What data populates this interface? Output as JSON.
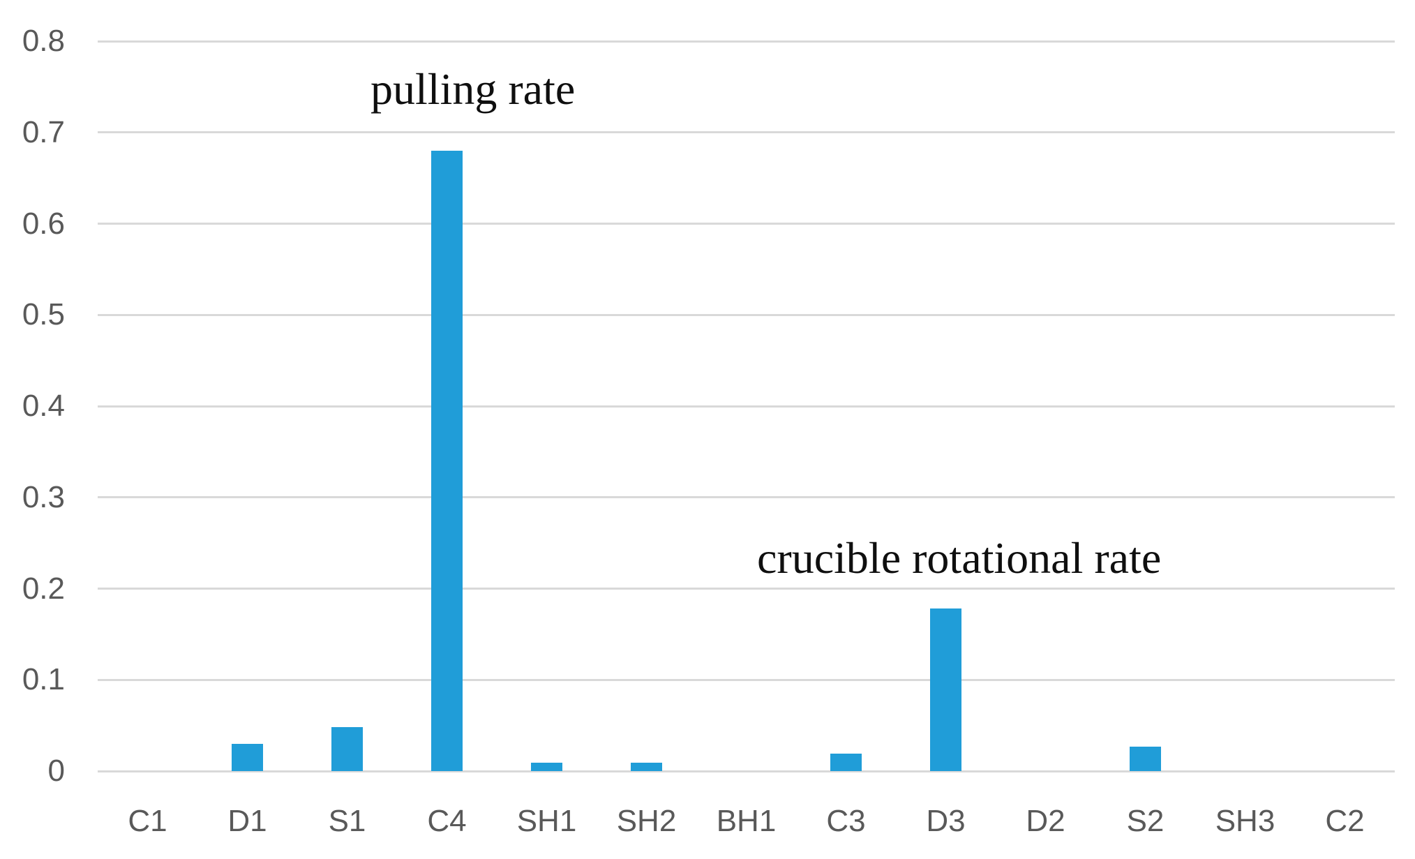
{
  "chart_data": {
    "type": "bar",
    "categories": [
      "C1",
      "D1",
      "S1",
      "C4",
      "SH1",
      "SH2",
      "BH1",
      "C3",
      "D3",
      "D2",
      "S2",
      "SH3",
      "C2"
    ],
    "values": [
      0,
      0.03,
      0.048,
      0.68,
      0.009,
      0.009,
      0,
      0.019,
      0.178,
      0,
      0.027,
      0,
      0
    ],
    "title": "",
    "xlabel": "",
    "ylabel": "",
    "ylim": [
      0,
      0.8
    ],
    "yticks": [
      0,
      0.1,
      0.2,
      0.3,
      0.4,
      0.5,
      0.6,
      0.7,
      0.8
    ],
    "ytick_labels": [
      "0",
      "0.1",
      "0.2",
      "0.3",
      "0.4",
      "0.5",
      "0.6",
      "0.7",
      "0.8"
    ],
    "grid": true,
    "legend": false,
    "annotations": [
      {
        "text": "pulling rate",
        "target_category": "C4"
      },
      {
        "text": "crucible rotational rate",
        "target_category": "D3"
      }
    ]
  },
  "colors": {
    "bar": "#209DD8",
    "gridline": "#D9D9D9",
    "tick_text": "#595959",
    "annotation_text": "#0F0F0F",
    "background": "#FFFFFF"
  }
}
